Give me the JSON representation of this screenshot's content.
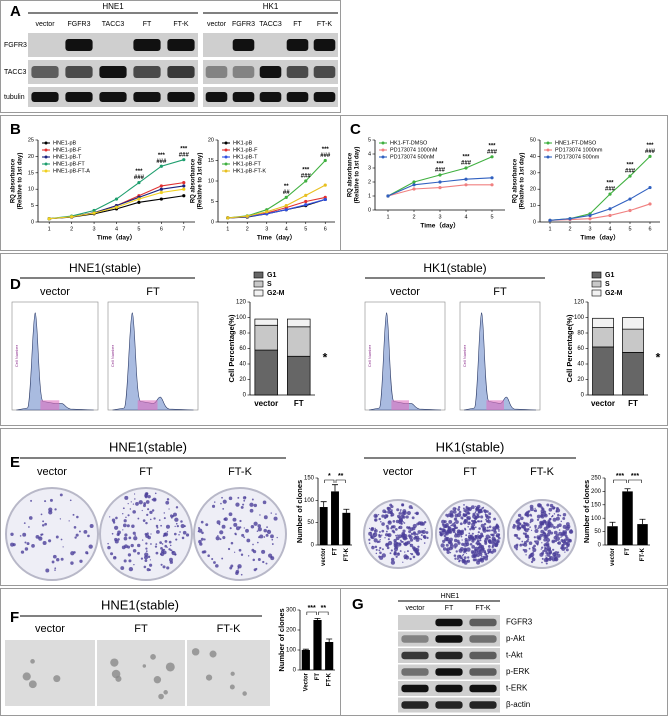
{
  "panels": {
    "A": {
      "label": "A",
      "groups": [
        {
          "name": "HNE1",
          "lanes": [
            "vector",
            "FGFR3",
            "TACC3",
            "FT",
            "FT-K"
          ]
        },
        {
          "name": "HK1",
          "lanes": [
            "vector",
            "FGFR3",
            "TACC3",
            "FT",
            "FT-K"
          ]
        }
      ],
      "rows": [
        "FGFR3",
        "TACC3",
        "tubulin"
      ]
    },
    "B": {
      "label": "B"
    },
    "C": {
      "label": "C"
    },
    "D": {
      "label": "D",
      "groups": [
        {
          "title": "HNE1(stable)",
          "samples": [
            "vector",
            "FT"
          ],
          "hist_ylabel": "Cell Number"
        },
        {
          "title": "HK1(stable)",
          "samples": [
            "vector",
            "FT"
          ],
          "hist_ylabel": "Cell Number"
        }
      ]
    },
    "E": {
      "label": "E",
      "groups": [
        {
          "title": "HNE1(stable)",
          "samples": [
            "vector",
            "FT",
            "FT-K"
          ]
        },
        {
          "title": "HK1(stable)",
          "samples": [
            "vector",
            "FT",
            "FT-K"
          ]
        }
      ]
    },
    "F": {
      "label": "F",
      "title": "HNE1(stable)",
      "samples": [
        "vector",
        "FT",
        "FT-K"
      ]
    },
    "G": {
      "label": "G",
      "group": "HNE1",
      "lanes": [
        "vector",
        "FT",
        "FT-K"
      ],
      "rows": [
        "FGFR3",
        "p-Akt",
        "t-Akt",
        "p-ERK",
        "t-ERK",
        "β-actin"
      ]
    }
  },
  "chart_data": [
    {
      "type": "line",
      "ylabel": [
        "RQ absorbance",
        "(Relative to 1st day)"
      ],
      "xlabel": "Time（day）",
      "x": [
        1,
        2,
        3,
        4,
        5,
        6,
        7
      ],
      "xlim": [
        0.5,
        7.5
      ],
      "xticks": [
        1,
        2,
        3,
        4,
        5,
        6,
        7
      ],
      "ylim": [
        0,
        25
      ],
      "yticks": [
        0,
        5,
        10,
        15,
        20,
        25
      ],
      "legend": "upper left",
      "series": [
        {
          "name": "HNE1-pB",
          "color": "#000000",
          "values": [
            1,
            1.5,
            2.5,
            4,
            6,
            7,
            8
          ]
        },
        {
          "name": "HNE1-pB-F",
          "color": "#e03030",
          "values": [
            1,
            1.6,
            2.8,
            5,
            8,
            11,
            12
          ]
        },
        {
          "name": "HNE1-pB-T",
          "color": "#1a237e",
          "values": [
            1,
            1.6,
            2.8,
            5,
            7.5,
            10,
            11
          ]
        },
        {
          "name": "HNE1-pB-FT",
          "color": "#1e9e6e",
          "values": [
            1,
            1.8,
            3.5,
            7,
            12,
            17,
            19
          ]
        },
        {
          "name": "HNE1-pB-FT-A",
          "color": "#f0d020",
          "values": [
            1,
            1.6,
            2.7,
            4.5,
            7,
            9,
            10
          ]
        }
      ],
      "annotations": [
        {
          "x": 5,
          "labels": [
            "***",
            "###"
          ]
        },
        {
          "x": 6,
          "labels": [
            "***",
            "###"
          ]
        },
        {
          "x": 7,
          "labels": [
            "***",
            "###"
          ]
        }
      ]
    },
    {
      "type": "line",
      "ylabel": [
        "RQ absorbance",
        "(Relative to 1st day)"
      ],
      "xlabel": "Time（day）",
      "x": [
        1,
        2,
        3,
        4,
        5,
        6
      ],
      "xlim": [
        0.5,
        6.5
      ],
      "xticks": [
        1,
        2,
        3,
        4,
        5,
        6
      ],
      "ylim": [
        0,
        20
      ],
      "yticks": [
        0,
        5,
        10,
        15,
        20
      ],
      "legend": "upper left",
      "series": [
        {
          "name": "HK1-pB",
          "color": "#000000",
          "values": [
            1,
            1.2,
            2,
            3,
            4,
            5.5
          ]
        },
        {
          "name": "HK1-pB-F",
          "color": "#e03030",
          "values": [
            1,
            1.3,
            2.2,
            3.5,
            5,
            6
          ]
        },
        {
          "name": "HK1-pB-T",
          "color": "#3050e0",
          "values": [
            1,
            1.3,
            2,
            3,
            4.2,
            5.5
          ]
        },
        {
          "name": "HK1-pB-FT",
          "color": "#40b040",
          "values": [
            1,
            1.5,
            3,
            6,
            10,
            15
          ]
        },
        {
          "name": "HK1-pB-FT-K",
          "color": "#e8c020",
          "values": [
            1,
            1.4,
            2.5,
            4,
            6.5,
            9
          ]
        }
      ],
      "annotations": [
        {
          "x": 4,
          "labels": [
            "**",
            "##"
          ]
        },
        {
          "x": 5,
          "labels": [
            "***",
            "###"
          ]
        },
        {
          "x": 6,
          "labels": [
            "***",
            "###"
          ]
        }
      ]
    },
    {
      "type": "line",
      "ylabel": [
        "RQ absorbance",
        "(Relative to 1st day)"
      ],
      "xlabel": "Time（day）",
      "x": [
        1,
        2,
        3,
        4,
        5
      ],
      "xlim": [
        0.5,
        5.5
      ],
      "xticks": [
        1,
        2,
        3,
        4,
        5
      ],
      "ylim": [
        0,
        5
      ],
      "yticks": [
        0,
        1,
        2,
        3,
        4,
        5
      ],
      "legend": "upper left",
      "series": [
        {
          "name": "HK1-FT-DMSO",
          "color": "#40b040",
          "values": [
            1,
            2,
            2.5,
            3,
            3.8
          ]
        },
        {
          "name": "PD173074 1000nM",
          "color": "#f08080",
          "values": [
            1,
            1.5,
            1.6,
            1.8,
            1.8
          ]
        },
        {
          "name": "PD173074 500nM",
          "color": "#3060c0",
          "values": [
            1,
            1.8,
            2,
            2.2,
            2.3
          ]
        }
      ],
      "annotations": [
        {
          "x": 3,
          "labels": [
            "***",
            "###"
          ]
        },
        {
          "x": 4,
          "labels": [
            "***",
            "###"
          ]
        },
        {
          "x": 5,
          "labels": [
            "***",
            "###"
          ]
        }
      ]
    },
    {
      "type": "line",
      "ylabel": [
        "RQ absorbance",
        "(Relative to 1st day)"
      ],
      "xlabel": "Time（day）",
      "x": [
        1,
        2,
        3,
        4,
        5,
        6
      ],
      "xlim": [
        0.5,
        6.5
      ],
      "xticks": [
        1,
        2,
        3,
        4,
        5,
        6
      ],
      "ylim": [
        0,
        50
      ],
      "yticks": [
        0,
        10,
        20,
        30,
        40,
        50
      ],
      "legend": "upper left",
      "series": [
        {
          "name": "HNE1-FT-DMSO",
          "color": "#40b040",
          "values": [
            1,
            2,
            5,
            17,
            28,
            40
          ]
        },
        {
          "name": "PD173074 1000nm",
          "color": "#f08080",
          "values": [
            1,
            1.5,
            2,
            4,
            7,
            11
          ]
        },
        {
          "name": "PD173074 500nm",
          "color": "#3060c0",
          "values": [
            1,
            2,
            4,
            8,
            14,
            21
          ]
        }
      ],
      "annotations": [
        {
          "x": 4,
          "labels": [
            "***",
            "###"
          ]
        },
        {
          "x": 5,
          "labels": [
            "***",
            "###"
          ]
        },
        {
          "x": 6,
          "labels": [
            "***",
            "###"
          ]
        }
      ]
    },
    {
      "type": "stacked_bar",
      "ylabel": "Cell Percentage(%)",
      "categories": [
        "vector",
        "FT"
      ],
      "series": [
        {
          "name": "G1",
          "color": "#666666",
          "values": [
            58,
            50
          ]
        },
        {
          "name": "S",
          "color": "#c8c8c8",
          "values": [
            32,
            38
          ]
        },
        {
          "name": "G2-M",
          "color": "#f2f2f2",
          "values": [
            8,
            10
          ]
        }
      ],
      "ylim": [
        0,
        120
      ],
      "yticks": [
        0,
        20,
        40,
        60,
        80,
        100,
        120
      ],
      "annotations": [
        {
          "label": "*"
        }
      ]
    },
    {
      "type": "stacked_bar",
      "ylabel": "Cell Percentage(%)",
      "categories": [
        "vector",
        "FT"
      ],
      "series": [
        {
          "name": "G1",
          "color": "#666666",
          "values": [
            62,
            55
          ]
        },
        {
          "name": "S",
          "color": "#c8c8c8",
          "values": [
            25,
            30
          ]
        },
        {
          "name": "G2-M",
          "color": "#f2f2f2",
          "values": [
            12,
            15
          ]
        }
      ],
      "ylim": [
        0,
        120
      ],
      "yticks": [
        0,
        20,
        40,
        60,
        80,
        100,
        120
      ],
      "annotations": [
        {
          "label": "*"
        }
      ]
    },
    {
      "type": "bar",
      "ylabel": "Number of clones",
      "categories": [
        "vector",
        "FT",
        "FT-K"
      ],
      "values": [
        85,
        120,
        72
      ],
      "errors": [
        12,
        15,
        8
      ],
      "color": "#000000",
      "ylim": [
        0,
        150
      ],
      "yticks": [
        0,
        50,
        100,
        150
      ],
      "significance": [
        {
          "from": 0,
          "to": 1,
          "label": "*"
        },
        {
          "from": 1,
          "to": 2,
          "label": "**"
        }
      ]
    },
    {
      "type": "bar",
      "ylabel": "Number of clones",
      "categories": [
        "vector",
        "FT",
        "FT-K"
      ],
      "values": [
        70,
        200,
        78
      ],
      "errors": [
        15,
        10,
        18
      ],
      "color": "#000000",
      "ylim": [
        0,
        250
      ],
      "yticks": [
        0,
        50,
        100,
        150,
        200,
        250
      ],
      "significance": [
        {
          "from": 0,
          "to": 1,
          "label": "***"
        },
        {
          "from": 1,
          "to": 2,
          "label": "***"
        }
      ]
    },
    {
      "type": "bar",
      "ylabel": "Number of clones",
      "categories": [
        "Vector",
        "FT",
        "FT-K"
      ],
      "values": [
        100,
        250,
        140
      ],
      "errors": [
        4,
        8,
        15
      ],
      "color": "#000000",
      "ylim": [
        0,
        300
      ],
      "yticks": [
        0,
        100,
        200,
        300
      ],
      "significance": [
        {
          "from": 0,
          "to": 1,
          "label": "***"
        },
        {
          "from": 1,
          "to": 2,
          "label": "**"
        }
      ]
    }
  ]
}
